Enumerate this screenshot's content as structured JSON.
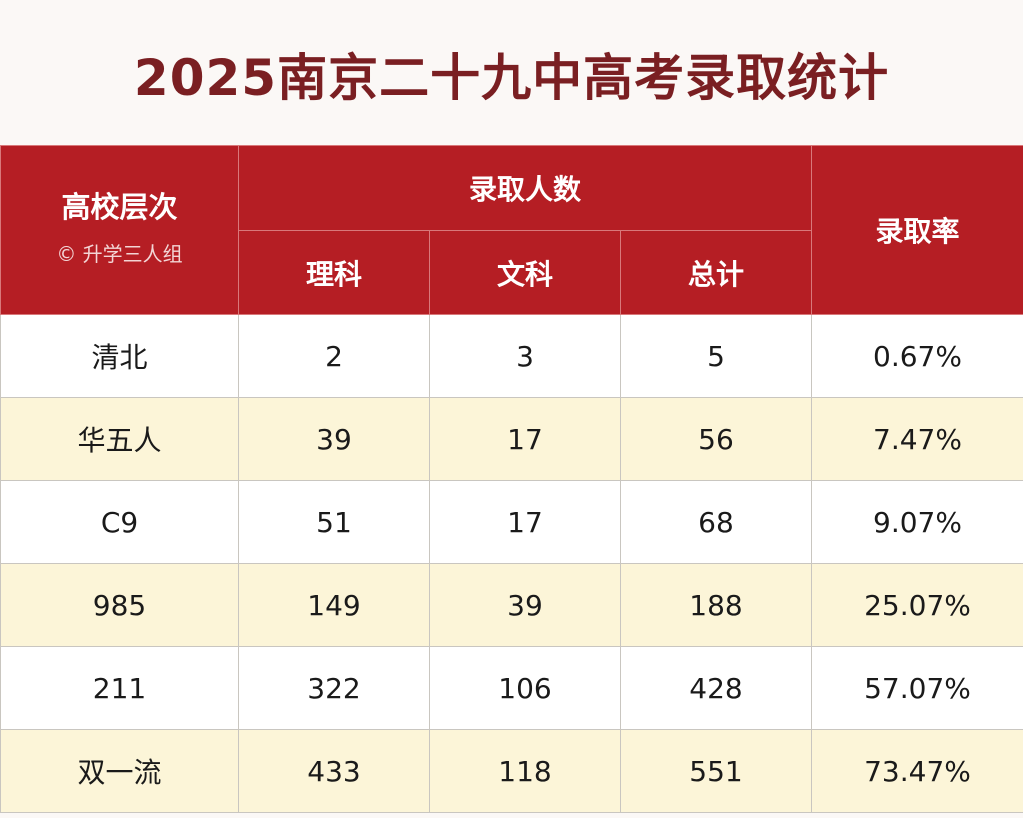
{
  "title": "2025南京二十九中高考录取统计",
  "header": {
    "level_label": "高校层次",
    "watermark": "© 升学三人组",
    "admitted_label": "录取人数",
    "science_label": "理科",
    "arts_label": "文科",
    "total_label": "总计",
    "rate_label": "录取率"
  },
  "rows": [
    {
      "level": "清北",
      "science": "2",
      "arts": "3",
      "total": "5",
      "rate": "0.67%"
    },
    {
      "level": "华五人",
      "science": "39",
      "arts": "17",
      "total": "56",
      "rate": "7.47%"
    },
    {
      "level": "C9",
      "science": "51",
      "arts": "17",
      "total": "68",
      "rate": "9.07%"
    },
    {
      "level": "985",
      "science": "149",
      "arts": "39",
      "total": "188",
      "rate": "25.07%"
    },
    {
      "level": "211",
      "science": "322",
      "arts": "106",
      "total": "428",
      "rate": "57.07%"
    },
    {
      "level": "双一流",
      "science": "433",
      "arts": "118",
      "total": "551",
      "rate": "73.47%"
    }
  ],
  "colors": {
    "header_bg": "#b51e24",
    "title": "#7a1f22",
    "row_alt": "#fcf5d8"
  }
}
